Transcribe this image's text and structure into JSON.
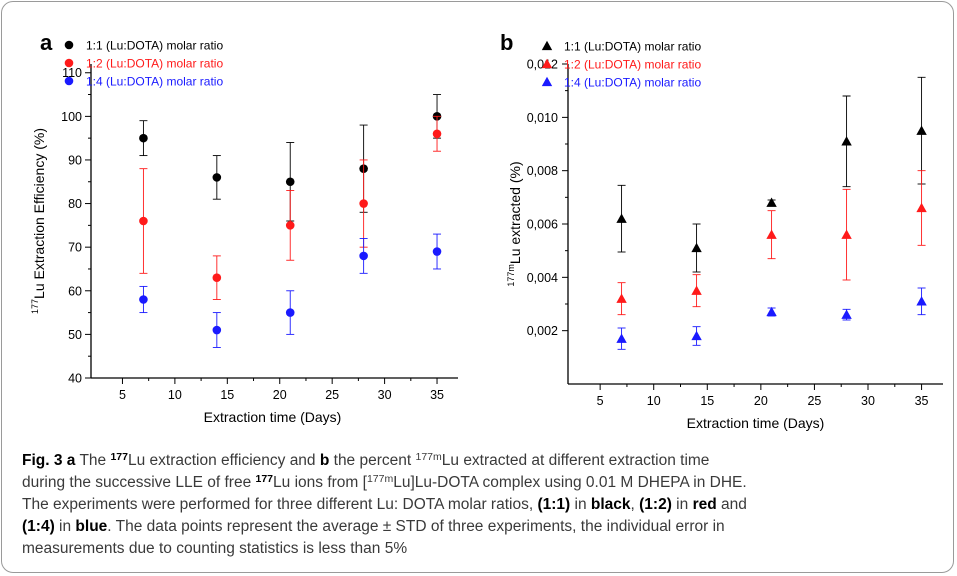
{
  "chart_data": [
    {
      "panel": "a",
      "type": "scatter",
      "marker": "circle",
      "xlabel": "Extraction time (Days)",
      "ylabel_sup": "177",
      "ylabel_main": "Lu Extraction Efficiency (%)",
      "xlim": [
        2,
        37
      ],
      "ylim": [
        40,
        112
      ],
      "xticks": [
        5,
        10,
        15,
        20,
        25,
        30,
        35
      ],
      "yticks": [
        40,
        50,
        60,
        70,
        80,
        90,
        100,
        110
      ],
      "ytick_labels": [
        "40",
        "50",
        "60",
        "70",
        "80",
        "90",
        "100",
        "110"
      ],
      "legend_position": "top-left",
      "series": [
        {
          "name": "1:1 (Lu:DOTA) molar ratio",
          "color": "#000000",
          "x": [
            7,
            14,
            21,
            28,
            35
          ],
          "y": [
            95,
            86,
            85,
            88,
            100
          ],
          "err": [
            4,
            5,
            9,
            10,
            5
          ]
        },
        {
          "name": "1:2 (Lu:DOTA) molar ratio",
          "color": "#ff1a1a",
          "x": [
            7,
            14,
            21,
            28,
            35
          ],
          "y": [
            76,
            63,
            75,
            80,
            96
          ],
          "err": [
            12,
            5,
            8,
            10,
            4
          ]
        },
        {
          "name": "1:4 (Lu:DOTA) molar ratio",
          "color": "#1a1aff",
          "x": [
            7,
            14,
            21,
            28,
            35
          ],
          "y": [
            58,
            51,
            55,
            68,
            69
          ],
          "err": [
            3,
            4,
            5,
            4,
            4
          ]
        }
      ]
    },
    {
      "panel": "b",
      "type": "scatter",
      "marker": "triangle",
      "xlabel": "Extraction time (Days)",
      "ylabel_sup": "177m",
      "ylabel_main": "Lu extracted (%)",
      "xlim": [
        2,
        37
      ],
      "ylim": [
        0,
        0.012
      ],
      "xticks": [
        5,
        10,
        15,
        20,
        25,
        30,
        35
      ],
      "yticks": [
        0.002,
        0.004,
        0.006,
        0.008,
        0.01,
        0.012
      ],
      "ytick_labels": [
        "0,002",
        "0,004",
        "0,006",
        "0,008",
        "0,010",
        "0,012"
      ],
      "legend_position": "top-left",
      "series": [
        {
          "name": "1:1 (Lu:DOTA) molar ratio",
          "color": "#000000",
          "x": [
            7,
            14,
            21,
            28,
            35
          ],
          "y": [
            0.0062,
            0.0051,
            0.0068,
            0.0091,
            0.0095
          ],
          "err": [
            0.00125,
            0.0009,
            0.0001,
            0.0017,
            0.002
          ]
        },
        {
          "name": "1:2 (Lu:DOTA) molar ratio",
          "color": "#ff1a1a",
          "x": [
            7,
            14,
            21,
            28,
            35
          ],
          "y": [
            0.0032,
            0.0035,
            0.0056,
            0.0056,
            0.0066
          ],
          "err": [
            0.0006,
            0.0006,
            0.0009,
            0.0017,
            0.0014
          ]
        },
        {
          "name": "1:4 (Lu:DOTA) molar ratio",
          "color": "#1a1aff",
          "x": [
            7,
            14,
            21,
            28,
            35
          ],
          "y": [
            0.0017,
            0.0018,
            0.0027,
            0.0026,
            0.0031
          ],
          "err": [
            0.0004,
            0.00035,
            0.00015,
            0.0002,
            0.0005
          ]
        }
      ]
    }
  ],
  "caption": {
    "fig_label": "Fig. 3",
    "panel_a": "a",
    "t1": " The ",
    "lu_sup": "177",
    "t2": "Lu extraction efficiency and ",
    "panel_b": "b",
    "t3": " the percent ",
    "lum_sup": "177m",
    "t4": "Lu extracted at different extraction time",
    "t5": "during the successive LLE of free ",
    "lu_sup2": "177",
    "t6": "Lu ions from [",
    "lum_sup2": "177m",
    "t7": "Lu]Lu-DOTA complex using 0.01 M DHEPA in DHE.",
    "t8": "The experiments were performed for three different Lu: DOTA molar ratios, ",
    "r11": "(1:1)",
    "t9": " in ",
    "black": "black",
    "t10": ", ",
    "r12": "(1:2)",
    "t11": " in ",
    "red": "red",
    "t12": " and",
    "r14": "(1:4)",
    "t13": " in ",
    "blue": "blue",
    "t14": ". The data points represent the average ± STD of three experiments, the individual error in",
    "t15": "measurements due to counting statistics is less than 5%"
  }
}
